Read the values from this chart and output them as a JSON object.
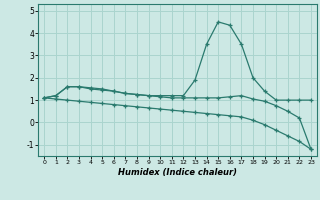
{
  "xlabel": "Humidex (Indice chaleur)",
  "background_color": "#cce8e4",
  "grid_color": "#aad4ce",
  "line_color": "#2a7a6e",
  "xlim": [
    -0.5,
    23.5
  ],
  "ylim": [
    -1.5,
    5.3
  ],
  "yticks": [
    -1,
    0,
    1,
    2,
    3,
    4,
    5
  ],
  "xticks": [
    0,
    1,
    2,
    3,
    4,
    5,
    6,
    7,
    8,
    9,
    10,
    11,
    12,
    13,
    14,
    15,
    16,
    17,
    18,
    19,
    20,
    21,
    22,
    23
  ],
  "series": [
    {
      "x": [
        0,
        1,
        2,
        3,
        4,
        5,
        6,
        7,
        8,
        9,
        10,
        11,
        12,
        13,
        14,
        15,
        16,
        17,
        18,
        19,
        20,
        21,
        22,
        23
      ],
      "y": [
        1.1,
        1.2,
        1.6,
        1.6,
        1.55,
        1.5,
        1.4,
        1.3,
        1.25,
        1.2,
        1.2,
        1.2,
        1.2,
        1.9,
        3.5,
        4.5,
        4.35,
        3.5,
        2.0,
        1.4,
        1.0,
        1.0,
        1.0,
        1.0
      ]
    },
    {
      "x": [
        0,
        1,
        2,
        3,
        4,
        5,
        6,
        7,
        8,
        9,
        10,
        11,
        12,
        13,
        14,
        15,
        16,
        17,
        18,
        19,
        20,
        21,
        22,
        23
      ],
      "y": [
        1.1,
        1.2,
        1.6,
        1.6,
        1.5,
        1.45,
        1.4,
        1.3,
        1.25,
        1.2,
        1.15,
        1.1,
        1.1,
        1.1,
        1.1,
        1.1,
        1.15,
        1.2,
        1.05,
        0.95,
        0.75,
        0.5,
        0.2,
        -1.2
      ]
    },
    {
      "x": [
        0,
        1,
        2,
        3,
        4,
        5,
        6,
        7,
        8,
        9,
        10,
        11,
        12,
        13,
        14,
        15,
        16,
        17,
        18,
        19,
        20,
        21,
        22,
        23
      ],
      "y": [
        1.1,
        1.05,
        1.0,
        0.95,
        0.9,
        0.85,
        0.8,
        0.75,
        0.7,
        0.65,
        0.6,
        0.55,
        0.5,
        0.45,
        0.4,
        0.35,
        0.3,
        0.25,
        0.1,
        -0.1,
        -0.35,
        -0.6,
        -0.85,
        -1.2
      ]
    }
  ]
}
